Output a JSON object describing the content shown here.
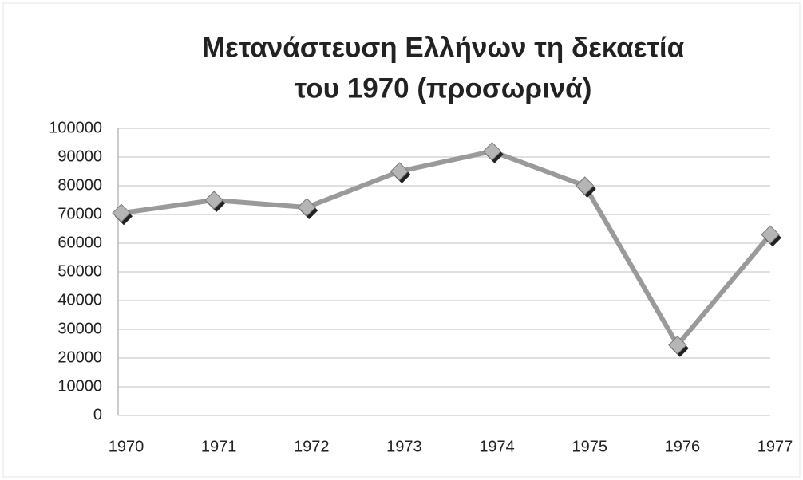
{
  "chart_data": {
    "type": "line",
    "title": [
      "Μετανάστευση Ελλήνων τη δεκαετία",
      "του 1970 (προσωρινά)"
    ],
    "categories": [
      "1970",
      "1971",
      "1972",
      "1973",
      "1974",
      "1975",
      "1976",
      "1977"
    ],
    "values": [
      70500,
      75000,
      72500,
      85000,
      92000,
      80000,
      24500,
      63000
    ],
    "color": "#9a9a9a",
    "ylim": [
      0,
      100000
    ],
    "yticks": [
      0,
      10000,
      20000,
      30000,
      40000,
      50000,
      60000,
      70000,
      80000,
      90000,
      100000
    ],
    "grid": true
  }
}
